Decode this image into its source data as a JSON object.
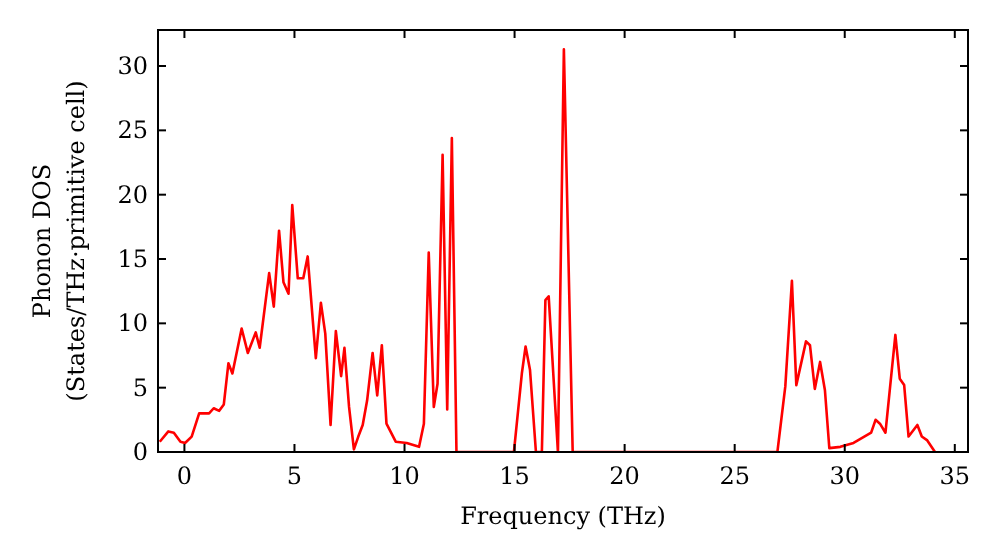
{
  "chart_data": {
    "type": "line",
    "xlabel": "Frequency (THz)",
    "ylabel": "Phonon DOS\n(States/THz·primitive cell)",
    "xlim": [
      -1.2,
      35.6
    ],
    "ylim": [
      0,
      32.8
    ],
    "xticks": [
      0,
      5,
      10,
      15,
      20,
      25,
      30,
      35
    ],
    "yticks": [
      0,
      5,
      10,
      15,
      20,
      25,
      30
    ],
    "grid": false,
    "marker": "none",
    "line_style": "solid",
    "series": [
      {
        "color": "#ff0000",
        "x": [
          -1.12,
          -0.73,
          -0.48,
          -0.18,
          0.03,
          0.33,
          0.67,
          1.12,
          1.33,
          1.58,
          1.79,
          2.0,
          2.18,
          2.6,
          2.88,
          3.24,
          3.42,
          3.85,
          4.06,
          4.3,
          4.5,
          4.73,
          4.9,
          5.15,
          5.4,
          5.6,
          5.97,
          6.2,
          6.4,
          6.64,
          6.88,
          7.12,
          7.27,
          7.48,
          7.7,
          7.9,
          8.1,
          8.3,
          8.55,
          8.76,
          8.97,
          9.18,
          9.6,
          10.1,
          10.66,
          10.88,
          11.1,
          11.33,
          11.5,
          11.73,
          11.94,
          12.15,
          12.36,
          14.97,
          15.33,
          15.5,
          15.7,
          15.97,
          16.24,
          16.4,
          16.55,
          16.97,
          17.24,
          17.64,
          26.94,
          27.3,
          27.6,
          27.8,
          28.24,
          28.42,
          28.64,
          28.88,
          29.1,
          29.3,
          29.8,
          30.4,
          31.2,
          31.4,
          31.6,
          31.85,
          32.3,
          32.5,
          32.7,
          32.9,
          33.3,
          33.5,
          33.75,
          34.1
        ],
        "values": [
          0.8,
          1.6,
          1.5,
          0.8,
          0.7,
          1.2,
          3.0,
          3.0,
          3.4,
          3.2,
          3.7,
          6.9,
          6.1,
          9.6,
          7.7,
          9.3,
          8.1,
          13.9,
          11.3,
          17.2,
          13.2,
          12.3,
          19.2,
          13.5,
          13.5,
          15.2,
          7.3,
          11.6,
          9.2,
          2.1,
          9.4,
          5.9,
          8.1,
          3.5,
          0.2,
          1.2,
          2.1,
          4.0,
          7.7,
          4.4,
          8.3,
          2.2,
          0.8,
          0.7,
          0.4,
          2.2,
          15.5,
          3.5,
          5.3,
          23.1,
          3.3,
          24.4,
          0,
          0,
          6.1,
          8.2,
          6.4,
          0,
          0,
          11.8,
          12.1,
          0,
          31.3,
          0,
          0,
          5.1,
          13.3,
          5.2,
          8.6,
          8.3,
          4.9,
          7.0,
          4.8,
          0.3,
          0.4,
          0.7,
          1.5,
          2.5,
          2.2,
          1.5,
          9.1,
          5.7,
          5.2,
          1.2,
          2.1,
          1.2,
          0.9,
          0
        ]
      }
    ]
  }
}
